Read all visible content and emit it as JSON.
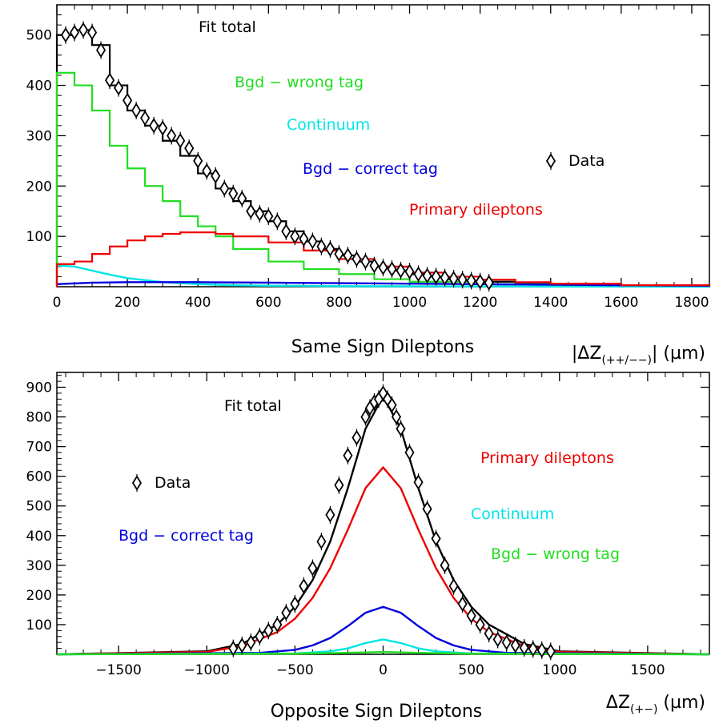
{
  "chart_data": [
    {
      "type": "line",
      "title": "Same Sign Dileptons",
      "xlabel": "|ΔZ(++/--)| (µm)",
      "xlabel_main": "|ΔZ",
      "xlabel_sub": "(++/−−)",
      "xlabel_unit": "| (µm)",
      "ylabel": "",
      "xlim": [
        0,
        1850
      ],
      "ylim": [
        0,
        560
      ],
      "xticks": [
        0,
        200,
        400,
        600,
        800,
        1000,
        1200,
        1400,
        1600,
        1800
      ],
      "yticks": [
        100,
        200,
        300,
        400,
        500
      ],
      "grid": false,
      "legend": "right",
      "series": [
        {
          "name": "Fit total",
          "color": "#000000",
          "style": "histogram",
          "x": [
            0,
            50,
            100,
            150,
            200,
            250,
            300,
            350,
            400,
            450,
            500,
            550,
            600,
            650,
            700,
            750,
            800,
            850,
            900,
            950,
            1000,
            1050,
            1100,
            1150,
            1200,
            1300,
            1400,
            1600,
            1850
          ],
          "values": [
            500,
            510,
            480,
            400,
            350,
            320,
            290,
            260,
            225,
            195,
            170,
            150,
            130,
            110,
            90,
            75,
            62,
            50,
            40,
            32,
            25,
            20,
            15,
            12,
            10,
            6,
            4,
            2,
            1
          ]
        },
        {
          "name": "Bgd - wrong tag",
          "color": "#22dd22",
          "style": "histogram",
          "x": [
            0,
            50,
            100,
            150,
            200,
            250,
            300,
            350,
            400,
            450,
            500,
            600,
            700,
            800,
            900,
            1000,
            1200,
            1400,
            1600,
            1850
          ],
          "values": [
            425,
            400,
            350,
            280,
            235,
            200,
            170,
            140,
            120,
            100,
            75,
            50,
            35,
            25,
            15,
            10,
            5,
            3,
            2,
            1
          ]
        },
        {
          "name": "Continuum",
          "color": "#00e5e5",
          "style": "line",
          "x": [
            0,
            50,
            100,
            150,
            200,
            300,
            400,
            500,
            600,
            800,
            1850
          ],
          "values": [
            42,
            40,
            32,
            24,
            17,
            9,
            5,
            3,
            2,
            1,
            0
          ]
        },
        {
          "name": "Bgd - correct tag",
          "color": "#0000dd",
          "style": "line",
          "x": [
            0,
            100,
            200,
            300,
            400,
            600,
            800,
            1000,
            1200,
            1400,
            1600,
            1850
          ],
          "values": [
            5,
            8,
            9,
            9,
            9,
            8,
            7,
            6,
            5,
            4,
            3,
            2
          ]
        },
        {
          "name": "Primary dileptons",
          "color": "#ee0000",
          "style": "histogram",
          "x": [
            0,
            50,
            100,
            150,
            200,
            250,
            300,
            350,
            400,
            450,
            500,
            600,
            700,
            800,
            900,
            1000,
            1100,
            1200,
            1300,
            1400,
            1600,
            1850
          ],
          "values": [
            45,
            50,
            65,
            80,
            92,
            100,
            105,
            108,
            108,
            105,
            100,
            88,
            72,
            55,
            40,
            28,
            20,
            14,
            9,
            6,
            3,
            1
          ]
        },
        {
          "name": "Data",
          "color": "#000000",
          "style": "points",
          "x": [
            25,
            50,
            75,
            100,
            125,
            150,
            175,
            200,
            225,
            250,
            275,
            300,
            325,
            350,
            375,
            400,
            425,
            450,
            475,
            500,
            525,
            550,
            575,
            600,
            625,
            650,
            675,
            700,
            725,
            750,
            775,
            800,
            825,
            850,
            875,
            900,
            925,
            950,
            975,
            1000,
            1025,
            1050,
            1075,
            1100,
            1125,
            1150,
            1175,
            1200,
            1225
          ],
          "values": [
            500,
            505,
            510,
            505,
            470,
            410,
            395,
            370,
            350,
            335,
            320,
            315,
            300,
            290,
            275,
            250,
            230,
            220,
            195,
            185,
            175,
            150,
            145,
            140,
            130,
            110,
            100,
            95,
            90,
            80,
            75,
            65,
            62,
            55,
            50,
            42,
            38,
            35,
            32,
            30,
            25,
            22,
            20,
            18,
            16,
            14,
            12,
            10,
            8
          ]
        }
      ],
      "annotations": [
        {
          "text": "Fit total",
          "color": "#000000"
        },
        {
          "text": "Bgd − wrong tag",
          "color": "#22dd22"
        },
        {
          "text": "Continuum",
          "color": "#00e5e5"
        },
        {
          "text": "Bgd − correct tag",
          "color": "#0000dd"
        },
        {
          "text": "Primary dileptons",
          "color": "#ee0000"
        },
        {
          "text": "Data",
          "color": "#000000"
        }
      ]
    },
    {
      "type": "line",
      "title": "Opposite Sign Dileptons",
      "xlabel": "ΔZ(+-) (µm)",
      "xlabel_main": "ΔZ",
      "xlabel_sub": "(+−)",
      "xlabel_unit": " (µm)",
      "ylabel": "",
      "xlim": [
        -1850,
        1850
      ],
      "ylim": [
        0,
        950
      ],
      "xticks": [
        -1500,
        -1000,
        -500,
        0,
        500,
        1000,
        1500
      ],
      "yticks": [
        100,
        200,
        300,
        400,
        500,
        600,
        700,
        800,
        900
      ],
      "grid": false,
      "legend": "left",
      "series": [
        {
          "name": "Fit total",
          "color": "#000000",
          "style": "line",
          "x": [
            -1850,
            -1000,
            -800,
            -600,
            -500,
            -400,
            -300,
            -200,
            -100,
            0,
            100,
            200,
            300,
            400,
            500,
            600,
            800,
            1000,
            1850
          ],
          "values": [
            0,
            10,
            35,
            100,
            160,
            250,
            380,
            560,
            760,
            870,
            760,
            560,
            380,
            250,
            160,
            100,
            35,
            10,
            0
          ]
        },
        {
          "name": "Primary dileptons",
          "color": "#ee0000",
          "style": "line",
          "x": [
            -1850,
            -1000,
            -800,
            -600,
            -500,
            -400,
            -300,
            -200,
            -100,
            0,
            100,
            200,
            300,
            400,
            500,
            600,
            800,
            1000,
            1850
          ],
          "values": [
            0,
            8,
            28,
            75,
            120,
            190,
            290,
            420,
            560,
            630,
            560,
            420,
            290,
            190,
            120,
            75,
            28,
            8,
            0
          ]
        },
        {
          "name": "Bgd - correct tag",
          "color": "#0000dd",
          "style": "line",
          "x": [
            -1850,
            -700,
            -500,
            -400,
            -300,
            -200,
            -100,
            0,
            100,
            200,
            300,
            400,
            500,
            700,
            1850
          ],
          "values": [
            0,
            5,
            15,
            30,
            55,
            95,
            140,
            160,
            140,
            95,
            55,
            30,
            15,
            5,
            0
          ]
        },
        {
          "name": "Continuum",
          "color": "#00e5e5",
          "style": "line",
          "x": [
            -1850,
            -500,
            -300,
            -200,
            -100,
            0,
            100,
            200,
            300,
            500,
            1850
          ],
          "values": [
            0,
            3,
            10,
            20,
            38,
            50,
            38,
            20,
            10,
            3,
            0
          ]
        },
        {
          "name": "Bgd - wrong tag",
          "color": "#22dd22",
          "style": "line",
          "x": [
            -1850,
            -500,
            -200,
            0,
            200,
            500,
            1850
          ],
          "values": [
            0,
            2,
            5,
            8,
            5,
            2,
            0
          ]
        },
        {
          "name": "Data",
          "color": "#000000",
          "style": "points",
          "x": [
            -850,
            -800,
            -750,
            -700,
            -650,
            -600,
            -550,
            -500,
            -450,
            -400,
            -350,
            -300,
            -250,
            -200,
            -150,
            -100,
            -75,
            -50,
            -25,
            0,
            25,
            50,
            75,
            100,
            150,
            200,
            250,
            300,
            350,
            400,
            450,
            500,
            550,
            600,
            650,
            700,
            750,
            800,
            850,
            900,
            950
          ],
          "values": [
            20,
            30,
            40,
            60,
            80,
            100,
            140,
            170,
            230,
            290,
            380,
            470,
            570,
            670,
            730,
            800,
            830,
            850,
            860,
            880,
            860,
            840,
            800,
            760,
            680,
            580,
            490,
            390,
            300,
            230,
            170,
            130,
            100,
            70,
            50,
            40,
            30,
            22,
            18,
            14,
            10
          ]
        }
      ],
      "annotations": [
        {
          "text": "Fit total",
          "color": "#000000"
        },
        {
          "text": "Primary dileptons",
          "color": "#ee0000"
        },
        {
          "text": "Continuum",
          "color": "#00e5e5"
        },
        {
          "text": "Bgd − correct tag",
          "color": "#0000dd"
        },
        {
          "text": "Bgd − wrong tag",
          "color": "#22dd22"
        },
        {
          "text": "Data",
          "color": "#000000"
        }
      ]
    }
  ]
}
